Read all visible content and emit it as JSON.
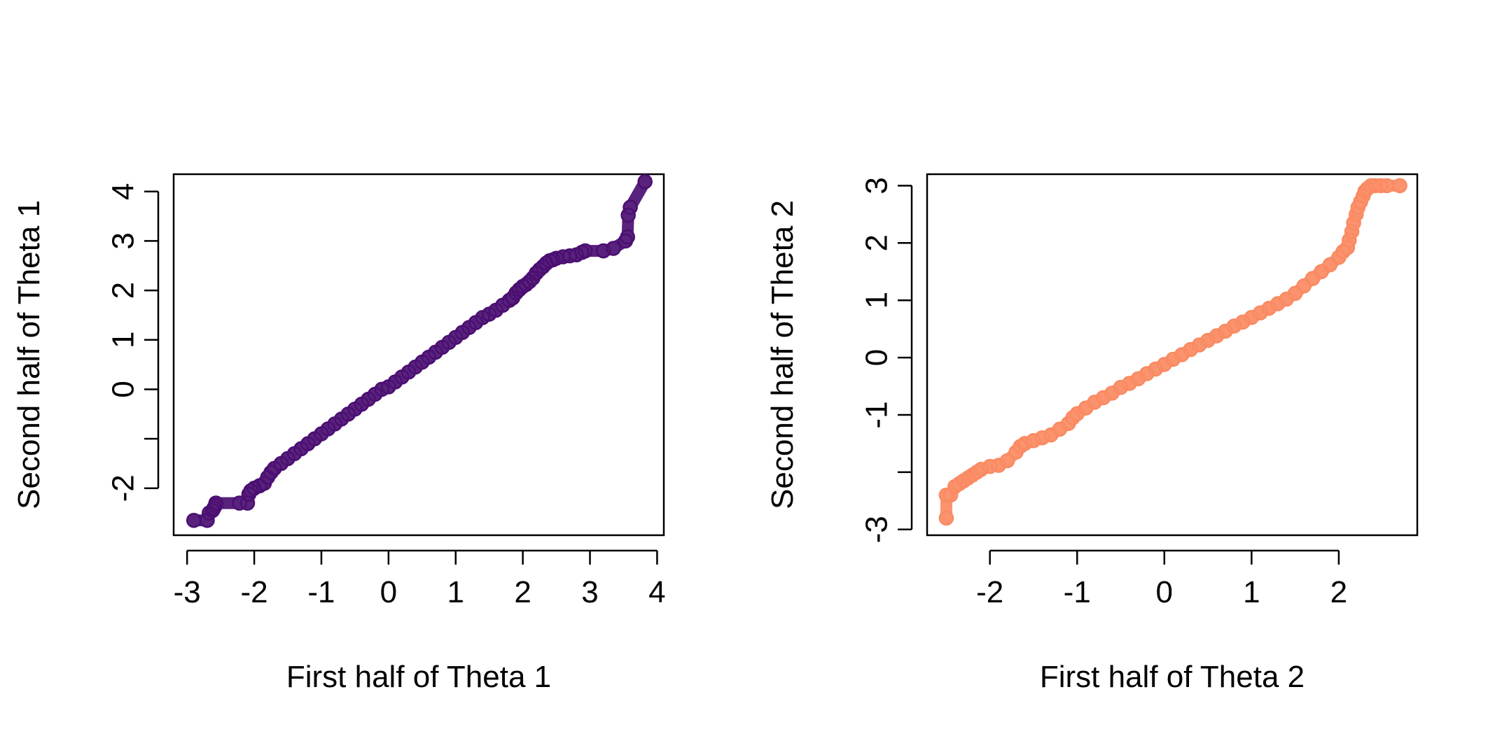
{
  "chart_data": [
    {
      "type": "scatter",
      "title": "",
      "xlabel": "First half of Theta 1",
      "ylabel": "Second half of Theta 1",
      "xlim": [
        -3.2,
        4.1
      ],
      "ylim": [
        -2.95,
        4.35
      ],
      "xticks": [
        -3,
        -2,
        -1,
        0,
        1,
        2,
        3,
        4
      ],
      "xtick_labels": [
        "-3",
        "-2",
        "-1",
        "0",
        "1",
        "2",
        "3",
        "4"
      ],
      "yticks": [
        -2,
        -1,
        0,
        1,
        2,
        3,
        4
      ],
      "ytick_labels": [
        "-2",
        "",
        "0",
        "1",
        "2",
        "3",
        "4"
      ],
      "marker": "open-circle",
      "color": "#4B0F72",
      "points": {
        "x": [
          -2.9,
          -2.7,
          -2.67,
          -2.62,
          -2.6,
          -2.58,
          -2.57,
          -2.22,
          -2.1,
          -2.08,
          -2.05,
          -2.0,
          -1.92,
          -1.85,
          -1.8,
          -1.75,
          -1.7,
          -1.6,
          -1.5,
          -1.4,
          -1.3,
          -1.2,
          -1.1,
          -1.0,
          -0.9,
          -0.8,
          -0.7,
          -0.6,
          -0.5,
          -0.4,
          -0.3,
          -0.2,
          -0.1,
          0.0,
          0.1,
          0.2,
          0.3,
          0.4,
          0.5,
          0.6,
          0.7,
          0.8,
          0.9,
          1.0,
          1.1,
          1.2,
          1.3,
          1.4,
          1.5,
          1.6,
          1.7,
          1.8,
          1.85,
          1.9,
          1.95,
          2.0,
          2.05,
          2.1,
          2.15,
          2.2,
          2.25,
          2.3,
          2.35,
          2.4,
          2.45,
          2.5,
          2.6,
          2.7,
          2.8,
          2.88,
          2.93,
          3.2,
          3.35,
          3.53,
          3.56,
          3.57,
          3.6,
          3.82
        ],
        "y": [
          -2.65,
          -2.65,
          -2.5,
          -2.45,
          -2.4,
          -2.35,
          -2.3,
          -2.3,
          -2.3,
          -2.12,
          -2.05,
          -2.0,
          -1.95,
          -1.9,
          -1.78,
          -1.68,
          -1.6,
          -1.5,
          -1.4,
          -1.3,
          -1.2,
          -1.1,
          -1.0,
          -0.9,
          -0.8,
          -0.7,
          -0.6,
          -0.5,
          -0.4,
          -0.3,
          -0.2,
          -0.1,
          0.0,
          0.05,
          0.15,
          0.25,
          0.35,
          0.45,
          0.55,
          0.65,
          0.75,
          0.85,
          0.95,
          1.05,
          1.15,
          1.25,
          1.35,
          1.45,
          1.52,
          1.6,
          1.7,
          1.8,
          1.85,
          1.95,
          2.02,
          2.08,
          2.12,
          2.18,
          2.25,
          2.35,
          2.42,
          2.48,
          2.55,
          2.6,
          2.62,
          2.65,
          2.68,
          2.7,
          2.72,
          2.77,
          2.8,
          2.8,
          2.85,
          3.0,
          3.08,
          3.52,
          3.68,
          4.2
        ]
      }
    },
    {
      "type": "scatter",
      "title": "",
      "xlabel": "First half of Theta 2",
      "ylabel": "Second half of Theta 2",
      "xlim": [
        -2.72,
        2.9
      ],
      "ylim": [
        -3.1,
        3.2
      ],
      "xticks": [
        -2,
        -1,
        0,
        1,
        2
      ],
      "xtick_labels": [
        "-2",
        "-1",
        "0",
        "1",
        "2"
      ],
      "yticks": [
        -3,
        -2,
        -1,
        0,
        1,
        2,
        3
      ],
      "ytick_labels": [
        "-3",
        "",
        "-1",
        "0",
        "1",
        "2",
        "3"
      ],
      "marker": "open-circle",
      "color": "#FA8A62",
      "points": {
        "x": [
          -2.5,
          -2.5,
          -2.45,
          -2.4,
          -2.35,
          -2.3,
          -2.25,
          -2.2,
          -2.15,
          -2.1,
          -2.0,
          -1.9,
          -1.8,
          -1.7,
          -1.65,
          -1.6,
          -1.5,
          -1.4,
          -1.3,
          -1.2,
          -1.1,
          -1.05,
          -1.0,
          -0.9,
          -0.8,
          -0.7,
          -0.6,
          -0.5,
          -0.4,
          -0.3,
          -0.2,
          -0.1,
          0.0,
          0.1,
          0.2,
          0.3,
          0.4,
          0.5,
          0.6,
          0.7,
          0.8,
          0.9,
          1.0,
          1.1,
          1.2,
          1.3,
          1.4,
          1.5,
          1.6,
          1.7,
          1.8,
          1.9,
          2.0,
          2.05,
          2.1,
          2.12,
          2.15,
          2.17,
          2.2,
          2.22,
          2.25,
          2.28,
          2.3,
          2.33,
          2.37,
          2.42,
          2.48,
          2.55,
          2.7
        ],
        "y": [
          -2.8,
          -2.4,
          -2.4,
          -2.25,
          -2.2,
          -2.15,
          -2.1,
          -2.05,
          -2.0,
          -1.95,
          -1.9,
          -1.88,
          -1.8,
          -1.65,
          -1.55,
          -1.5,
          -1.45,
          -1.4,
          -1.35,
          -1.25,
          -1.15,
          -1.05,
          -0.98,
          -0.88,
          -0.78,
          -0.7,
          -0.62,
          -0.52,
          -0.45,
          -0.37,
          -0.28,
          -0.2,
          -0.12,
          -0.03,
          0.05,
          0.14,
          0.22,
          0.3,
          0.38,
          0.46,
          0.55,
          0.62,
          0.7,
          0.78,
          0.86,
          0.94,
          1.02,
          1.12,
          1.25,
          1.38,
          1.5,
          1.62,
          1.75,
          1.85,
          1.92,
          2.05,
          2.2,
          2.35,
          2.5,
          2.62,
          2.72,
          2.82,
          2.9,
          2.95,
          3.0,
          3.0,
          3.0,
          3.0,
          3.0
        ]
      }
    }
  ]
}
